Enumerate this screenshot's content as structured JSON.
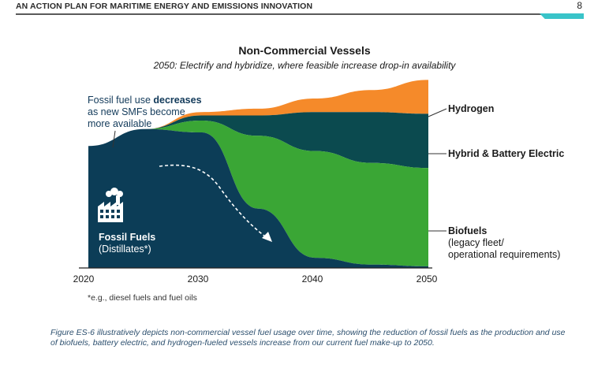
{
  "header": {
    "title": "AN ACTION PLAN FOR MARITIME ENERGY AND EMISSIONS INNOVATION",
    "page_number": "8"
  },
  "annotation": {
    "line1_prefix": "Fossil fuel use ",
    "line1_bold": "decreases",
    "line2": "as new SMFs become",
    "line3": "more available"
  },
  "fossil_label": {
    "title": "Fossil Fuels",
    "subtitle": "(Distillates*)"
  },
  "legend": {
    "hydrogen": "Hydrogen",
    "hybrid": "Hybrid & Battery Electric",
    "biofuels": "Biofuels",
    "biofuels_sub1": "(legacy fleet/",
    "biofuels_sub2": "operational requirements)"
  },
  "footnote": "*e.g., diesel fuels and fuel oils",
  "caption": "Figure ES-6 illustratively depicts non-commercial vessel fuel usage over time, showing the reduction of fossil fuels as the production and use of biofuels, battery electric, and hydrogen-fueled vessels increase from our current fuel make-up to 2050.",
  "chart_data": {
    "type": "area",
    "title": "Non-Commercial Vessels",
    "subtitle": "2050: Electrify and hybridize, where feasible increase drop-in availability",
    "xlabel": "",
    "ylabel": "",
    "x_ticks": [
      "2020",
      "2030",
      "2040",
      "2050"
    ],
    "xlim": [
      2020,
      2050
    ],
    "stacked": true,
    "legend_placement": "right",
    "x": [
      2020,
      2025,
      2030,
      2035,
      2040,
      2045,
      2050
    ],
    "series": [
      {
        "name": "Fossil Fuels",
        "color": "#0c3d57",
        "values": [
          0.72,
          0.82,
          0.8,
          0.35,
          0.06,
          0.02,
          0.01
        ]
      },
      {
        "name": "Biofuels",
        "color": "#3aa635",
        "values": [
          0.0,
          0.0,
          0.07,
          0.43,
          0.63,
          0.6,
          0.58
        ]
      },
      {
        "name": "Hybrid & Battery Electric",
        "color": "#0b4a4f",
        "values": [
          0.0,
          0.0,
          0.03,
          0.12,
          0.23,
          0.3,
          0.32
        ]
      },
      {
        "name": "Hydrogen",
        "color": "#f58a2a",
        "values": [
          0.0,
          0.0,
          0.02,
          0.04,
          0.08,
          0.13,
          0.2
        ]
      }
    ],
    "grid": false
  }
}
